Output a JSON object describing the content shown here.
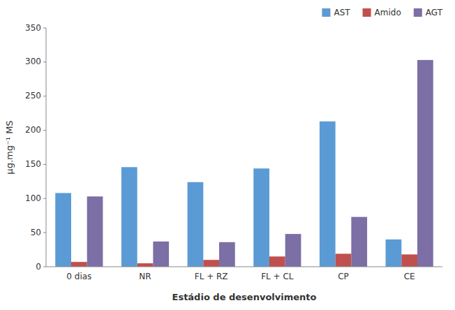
{
  "chart_data": {
    "type": "bar",
    "categories": [
      "0 dias",
      "NR",
      "FL + RZ",
      "FL + CL",
      "CP",
      "CE"
    ],
    "series": [
      {
        "name": "AST",
        "color": "#5B9BD5",
        "values": [
          108,
          146,
          124,
          144,
          213,
          40
        ]
      },
      {
        "name": "Amido",
        "color": "#C0504D",
        "values": [
          7,
          5,
          10,
          15,
          19,
          18
        ]
      },
      {
        "name": "AGT",
        "color": "#7B6FA5",
        "values": [
          103,
          37,
          36,
          48,
          73,
          303
        ]
      }
    ],
    "ylabel": "µg.mg⁻¹ MS",
    "xlabel": "Estádio de desenvolvimento",
    "ylim": [
      0,
      350
    ],
    "yticks": [
      0,
      50,
      100,
      150,
      200,
      250,
      300,
      350
    ],
    "grid": false,
    "legend": "upper right"
  }
}
